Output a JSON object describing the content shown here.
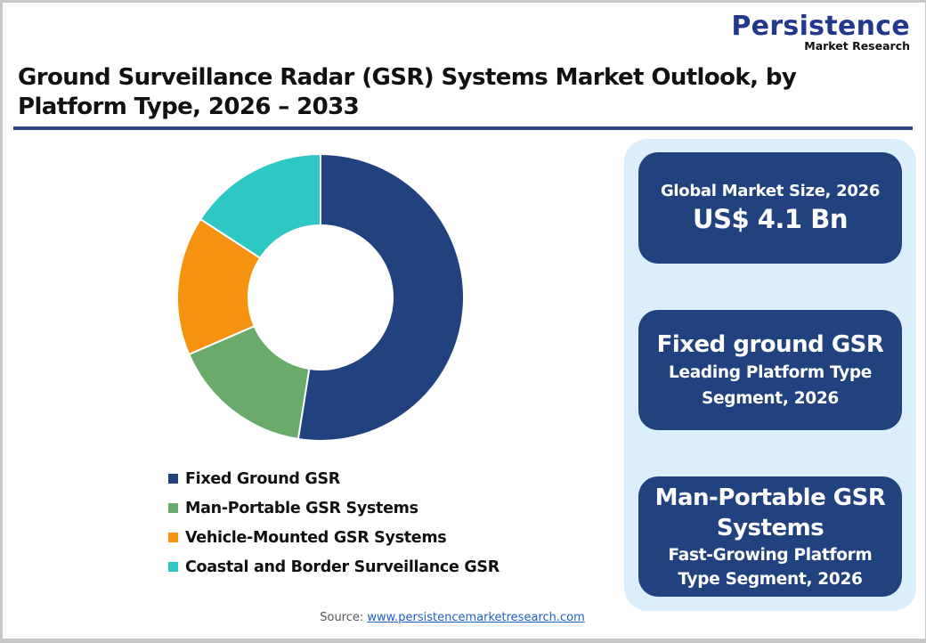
{
  "logo": {
    "main": "Persistence",
    "sub": "Market Research"
  },
  "title": "Ground Surveillance Radar (GSR) Systems Market Outlook, by Platform Type, 2026 – 2033",
  "legend": [
    {
      "label": "Fixed Ground GSR",
      "color": "#22427f"
    },
    {
      "label": "Man-Portable GSR Systems",
      "color": "#6aaa6a"
    },
    {
      "label": "Vehicle-Mounted GSR Systems",
      "color": "#f59310"
    },
    {
      "label": "Coastal and Border Surveillance GSR",
      "color": "#2ec8c4"
    }
  ],
  "cards": {
    "market_size": {
      "label": "Global Market Size, 2026",
      "value": "US$ 4.1 Bn"
    },
    "leading": {
      "title": "Fixed ground GSR",
      "sub1": "Leading Platform Type",
      "sub2": "Segment, 2026"
    },
    "fastest": {
      "title1": "Man-Portable GSR",
      "title2": "Systems",
      "sub1": "Fast-Growing Platform",
      "sub2": "Type Segment, 2026"
    }
  },
  "source": {
    "label": "Source:",
    "link": "www.persistencemarketresearch.com"
  },
  "colors": {
    "brand_navy": "#22427f",
    "panel_bg": "#daeefb",
    "rule": "#2a4580"
  },
  "chart_data": {
    "type": "pie",
    "subtype": "donut",
    "title": "Ground Surveillance Radar (GSR) Systems Market Outlook, by Platform Type, 2026 – 2033",
    "categories": [
      "Fixed Ground GSR",
      "Man-Portable GSR Systems",
      "Vehicle-Mounted GSR Systems",
      "Coastal and Border Surveillance GSR"
    ],
    "values": [
      52.5,
      16.0,
      15.7,
      15.8
    ],
    "unit": "% share (estimated from slice angles)",
    "colors": [
      "#22427f",
      "#6aaa6a",
      "#f59310",
      "#2ec8c4"
    ],
    "legend_position": "bottom",
    "start_angle": "12 o'clock, clockwise"
  }
}
